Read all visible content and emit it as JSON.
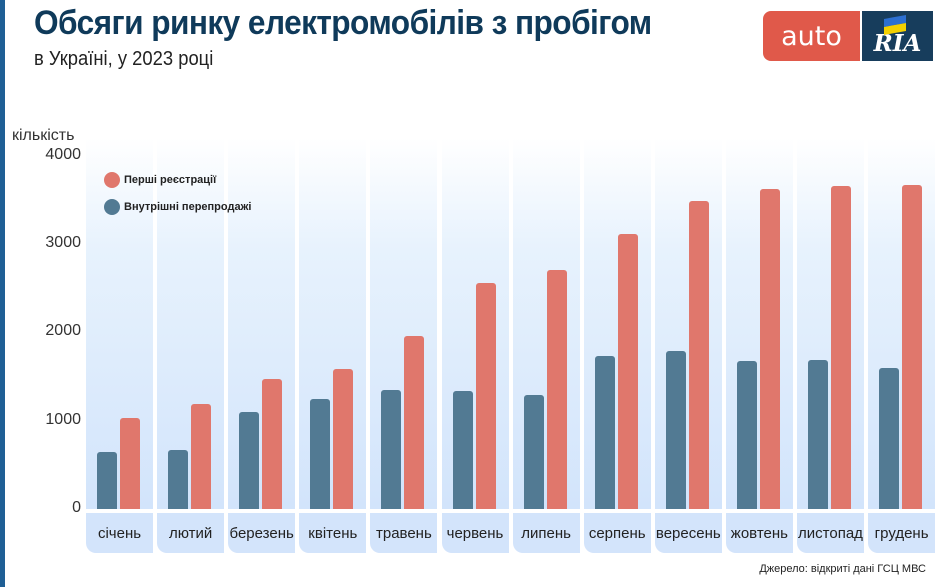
{
  "header": {
    "title": "Обсяги ринку електромобілів з пробігом",
    "subtitle": "в Україні, у 2023 році"
  },
  "logo": {
    "left_text": "auto",
    "right_text": "RIA",
    "left_color": "#e0594a",
    "right_color": "#173d5c"
  },
  "footer": {
    "source": "Джерело: відкриті дані ГСЦ МВС"
  },
  "chart_data": {
    "type": "bar",
    "title": "Обсяги ринку електромобілів з пробігом",
    "subtitle": "в Україні, у 2023 році",
    "xlabel": "",
    "ylabel": "кількість",
    "ylim": [
      0,
      4000
    ],
    "yticks": [
      0,
      1000,
      2000,
      3000,
      4000
    ],
    "grid": false,
    "legend_position": "top-left",
    "categories": [
      "січень",
      "лютий",
      "березень",
      "квітень",
      "травень",
      "червень",
      "липень",
      "серпень",
      "вересень",
      "жовтень",
      "листопад",
      "грудень"
    ],
    "series": [
      {
        "name": "Внутрішні перепродажі",
        "color": "#527a93",
        "values": [
          650,
          670,
          1100,
          1240,
          1350,
          1330,
          1290,
          1730,
          1790,
          1680,
          1690,
          1600
        ]
      },
      {
        "name": "Перші реєстрації",
        "color": "#e0776c",
        "values": [
          1030,
          1190,
          1470,
          1580,
          1960,
          2560,
          2700,
          3110,
          3480,
          3620,
          3650,
          3670
        ]
      }
    ],
    "legend": [
      {
        "name": "Перші реєстрації",
        "color": "#e0776c"
      },
      {
        "name": "Внутрішні перепродажі",
        "color": "#527a93"
      }
    ]
  }
}
